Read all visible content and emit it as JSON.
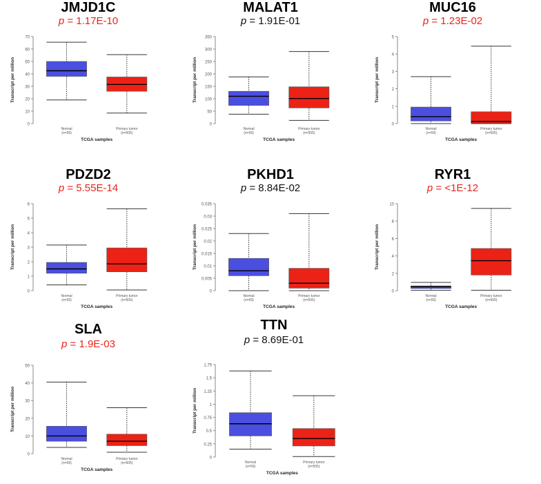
{
  "colors": {
    "normal": "#4B4FE0",
    "tumor": "#EC2216",
    "significant": "#E8231B",
    "not_significant": "#111111"
  },
  "chart_data": [
    {
      "type": "box",
      "title": "JMJD1C",
      "p_label": "p",
      "p_value": "= 1.17E-10",
      "significant": true,
      "ylabel": "Transcript per million",
      "xlabel": "TCGA samples",
      "ylim": [
        0,
        70
      ],
      "yticks": [
        "0",
        "10",
        "20",
        "30",
        "40",
        "50",
        "60",
        "70"
      ],
      "yticks_values": [
        0,
        10,
        20,
        30,
        40,
        50,
        60,
        70
      ],
      "categories": [
        "Normal",
        "Primary tumor"
      ],
      "counts": [
        "(n=59)",
        "(n=505)"
      ],
      "boxes": [
        {
          "min": 19,
          "q1": 38,
          "median": 42.5,
          "q3": 50,
          "max": 65.5
        },
        {
          "min": 8.5,
          "q1": 26,
          "median": 31.5,
          "q3": 37.5,
          "max": 55.5
        }
      ]
    },
    {
      "type": "box",
      "title": "MALAT1",
      "p_label": "p",
      "p_value": "= 1.91E-01",
      "significant": false,
      "ylabel": "Transcript per million",
      "xlabel": "TCGA samples",
      "ylim": [
        0,
        350
      ],
      "yticks": [
        "0",
        "50",
        "100",
        "150",
        "200",
        "250",
        "300",
        "350"
      ],
      "yticks_values": [
        0,
        50,
        100,
        150,
        200,
        250,
        300,
        350
      ],
      "categories": [
        "Normal",
        "Primary tumor"
      ],
      "counts": [
        "(n=59)",
        "(n=505)"
      ],
      "boxes": [
        {
          "min": 38,
          "q1": 73,
          "median": 110,
          "q3": 130,
          "max": 188
        },
        {
          "min": 13,
          "q1": 63,
          "median": 101,
          "q3": 148,
          "max": 290
        }
      ]
    },
    {
      "type": "box",
      "title": "MUC16",
      "p_label": "p",
      "p_value": "= 1.23E-02",
      "significant": true,
      "ylabel": "Transcript per million",
      "xlabel": "TCGA samples",
      "ylim": [
        0,
        5
      ],
      "yticks": [
        "0",
        "1",
        "2",
        "3",
        "4",
        "5"
      ],
      "yticks_values": [
        0,
        1,
        2,
        3,
        4,
        5
      ],
      "categories": [
        "Normal",
        "Primary tumor"
      ],
      "counts": [
        "(n=59)",
        "(n=505)"
      ],
      "boxes": [
        {
          "min": 0,
          "q1": 0.15,
          "median": 0.4,
          "q3": 0.95,
          "max": 2.7
        },
        {
          "min": 0,
          "q1": 0.02,
          "median": 0.12,
          "q3": 0.68,
          "max": 4.45
        }
      ]
    },
    {
      "type": "box",
      "title": "PDZD2",
      "p_label": "p",
      "p_value": "= 5.55E-14",
      "significant": true,
      "ylabel": "Transcript per million",
      "xlabel": "TCGA samples",
      "ylim": [
        0,
        6
      ],
      "yticks": [
        "0",
        "1",
        "2",
        "3",
        "4",
        "5",
        "6"
      ],
      "yticks_values": [
        0,
        1,
        2,
        3,
        4,
        5,
        6
      ],
      "categories": [
        "Normal",
        "Primary tumor"
      ],
      "counts": [
        "(n=59)",
        "(n=505)"
      ],
      "boxes": [
        {
          "min": 0.4,
          "q1": 1.2,
          "median": 1.5,
          "q3": 1.95,
          "max": 3.15
        },
        {
          "min": 0.05,
          "q1": 1.3,
          "median": 1.85,
          "q3": 2.95,
          "max": 5.65
        }
      ]
    },
    {
      "type": "box",
      "title": "PKHD1",
      "p_label": "p",
      "p_value": "= 8.84E-02",
      "significant": false,
      "ylabel": "Transcript per million",
      "xlabel": "TCGA samples",
      "ylim": [
        0,
        0.035
      ],
      "yticks": [
        "0",
        "0.005",
        "0.01",
        "0.015",
        "0.02",
        "0.025",
        "0.03",
        "0.035"
      ],
      "yticks_values": [
        0,
        0.005,
        0.01,
        0.015,
        0.02,
        0.025,
        0.03,
        0.035
      ],
      "categories": [
        "Normal",
        "Primary tumor"
      ],
      "counts": [
        "(n=59)",
        "(n=505)"
      ],
      "boxes": [
        {
          "min": 0,
          "q1": 0.006,
          "median": 0.008,
          "q3": 0.013,
          "max": 0.023
        },
        {
          "min": 0,
          "q1": 0.001,
          "median": 0.003,
          "q3": 0.009,
          "max": 0.031
        }
      ]
    },
    {
      "type": "box",
      "title": "RYR1",
      "p_label": "p",
      "p_value": "= <1E-12",
      "significant": true,
      "ylabel": "Transcript per million",
      "xlabel": "TCGA samples",
      "ylim": [
        0,
        10
      ],
      "yticks": [
        "0",
        "2",
        "4",
        "6",
        "8",
        "10"
      ],
      "yticks_values": [
        0,
        2,
        4,
        6,
        8,
        10
      ],
      "categories": [
        "Normal",
        "Primary tumor"
      ],
      "counts": [
        "(n=59)",
        "(n=505)"
      ],
      "boxes": [
        {
          "min": 0.05,
          "q1": 0.25,
          "median": 0.45,
          "q3": 0.55,
          "max": 0.95
        },
        {
          "min": 0.05,
          "q1": 1.8,
          "median": 3.45,
          "q3": 4.85,
          "max": 9.45
        }
      ]
    },
    {
      "type": "box",
      "title": "SLA",
      "p_label": "p",
      "p_value": "= 1.9E-03",
      "significant": true,
      "ylabel": "Transcript per million",
      "xlabel": "TCGA samples",
      "ylim": [
        0,
        50
      ],
      "yticks": [
        "0",
        "10",
        "20",
        "30",
        "40",
        "50"
      ],
      "yticks_values": [
        0,
        10,
        20,
        30,
        40,
        50
      ],
      "categories": [
        "Normal",
        "Primary tumor"
      ],
      "counts": [
        "(n=59)",
        "(n=505)"
      ],
      "boxes": [
        {
          "min": 3.5,
          "q1": 7,
          "median": 10,
          "q3": 15.5,
          "max": 40.5
        },
        {
          "min": 0.8,
          "q1": 4.5,
          "median": 7,
          "q3": 11,
          "max": 26
        }
      ]
    },
    {
      "type": "box",
      "title": "TTN",
      "p_label": "p",
      "p_value": "= 8.69E-01",
      "significant": false,
      "ylabel": "Transcript per million",
      "xlabel": "TCGA samples",
      "ylim": [
        0,
        1.75
      ],
      "yticks": [
        "0",
        "0.25",
        "0.5",
        "0.75",
        "1",
        "1.25",
        "1.5",
        "1.75"
      ],
      "yticks_values": [
        0,
        0.25,
        0.5,
        0.75,
        1,
        1.25,
        1.5,
        1.75
      ],
      "categories": [
        "Normal",
        "Primary tumor"
      ],
      "counts": [
        "(n=59)",
        "(n=505)"
      ],
      "boxes": [
        {
          "min": 0.15,
          "q1": 0.4,
          "median": 0.63,
          "q3": 0.84,
          "max": 1.63
        },
        {
          "min": 0.01,
          "q1": 0.21,
          "median": 0.35,
          "q3": 0.54,
          "max": 1.16
        }
      ]
    }
  ]
}
